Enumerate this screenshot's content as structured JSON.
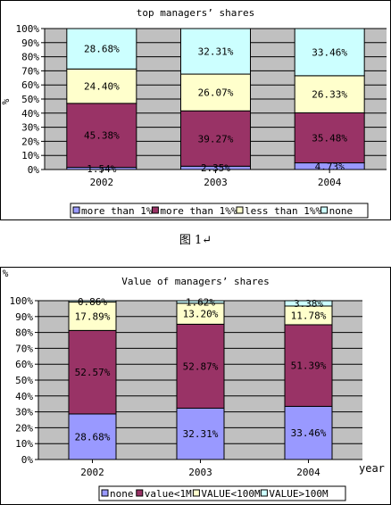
{
  "caption": "图 1↵",
  "colors": {
    "blue": "#9999ff",
    "maroon": "#993366",
    "cream": "#ffffcc",
    "cyan": "#ccffff",
    "plot_bg": "#c0c0c0",
    "border": "#000000"
  },
  "chart_data": [
    {
      "type": "bar",
      "stacked": true,
      "title": "top managers’ shares",
      "ylabel": "%",
      "xlabel": "",
      "categories": [
        "2002",
        "2003",
        "2004"
      ],
      "ylim": [
        0,
        100
      ],
      "yticks": [
        "0%",
        "10%",
        "20%",
        "30%",
        "40%",
        "50%",
        "60%",
        "70%",
        "80%",
        "90%",
        "100%"
      ],
      "series": [
        {
          "name": "more than 1%",
          "color": "#9999ff",
          "values": [
            1.54,
            2.35,
            4.73
          ],
          "labels": [
            "1.54%",
            "2.35%",
            "4.73%"
          ]
        },
        {
          "name": "more than 1%%",
          "color": "#993366",
          "values": [
            45.38,
            39.27,
            35.48
          ],
          "labels": [
            "45.38%",
            "39.27%",
            "35.48%"
          ]
        },
        {
          "name": "less than 1%%",
          "color": "#ffffcc",
          "values": [
            24.4,
            26.07,
            26.33
          ],
          "labels": [
            "24.40%",
            "26.07%",
            "26.33%"
          ]
        },
        {
          "name": "none",
          "color": "#ccffff",
          "values": [
            28.68,
            32.31,
            33.46
          ],
          "labels": [
            "28.68%",
            "32.31%",
            "33.46%"
          ]
        }
      ],
      "grid": true,
      "legend": "bottom"
    },
    {
      "type": "bar",
      "stacked": true,
      "title": "Value of managers’ shares",
      "ylabel": "%",
      "xlabel": "year",
      "categories": [
        "2002",
        "2003",
        "2004"
      ],
      "ylim": [
        0,
        100
      ],
      "yticks": [
        "0%",
        "10%",
        "20%",
        "30%",
        "40%",
        "50%",
        "60%",
        "70%",
        "80%",
        "90%",
        "100%"
      ],
      "series": [
        {
          "name": "none",
          "color": "#9999ff",
          "values": [
            28.68,
            32.31,
            33.46
          ],
          "labels": [
            "28.68%",
            "32.31%",
            "33.46%"
          ]
        },
        {
          "name": "value<1M",
          "color": "#993366",
          "values": [
            52.57,
            52.87,
            51.39
          ],
          "labels": [
            "52.57%",
            "52.87%",
            "51.39%"
          ]
        },
        {
          "name": "VALUE<100M",
          "color": "#ffffcc",
          "values": [
            17.89,
            13.2,
            11.78
          ],
          "labels": [
            "17.89%",
            "13.20%",
            "11.78%"
          ]
        },
        {
          "name": "VALUE>100M",
          "color": "#ccffff",
          "values": [
            0.86,
            1.62,
            3.38
          ],
          "labels": [
            "0.86%",
            "1.62%",
            "3.38%"
          ]
        }
      ],
      "grid": true,
      "legend": "bottom"
    }
  ]
}
